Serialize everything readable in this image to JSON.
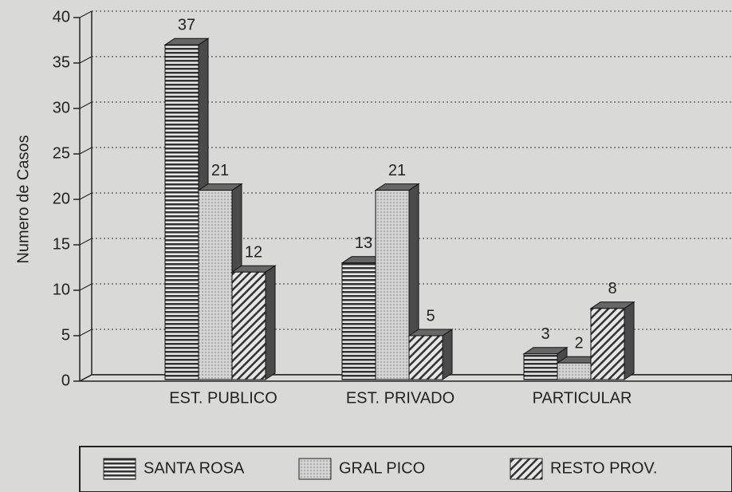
{
  "chart_data": {
    "type": "bar",
    "y_label": "Numero de Casos",
    "categories": [
      "EST. PUBLICO",
      "EST. PRIVADO",
      "PARTICULAR"
    ],
    "series": [
      {
        "name": "SANTA ROSA",
        "color": "#444444",
        "pattern": "horizontal",
        "values": [
          37,
          13,
          3
        ]
      },
      {
        "name": "GRAL PICO",
        "color": "#cfcfcf",
        "pattern": "dots",
        "values": [
          21,
          21,
          2
        ]
      },
      {
        "name": "RESTO PROV.",
        "color": "#555555",
        "pattern": "diagonal",
        "values": [
          12,
          5,
          8
        ]
      }
    ],
    "ylim": [
      0,
      40
    ],
    "yticks": [
      0,
      5,
      10,
      15,
      20,
      25,
      30,
      35,
      40
    ],
    "grid": true,
    "legend": "bottom"
  }
}
